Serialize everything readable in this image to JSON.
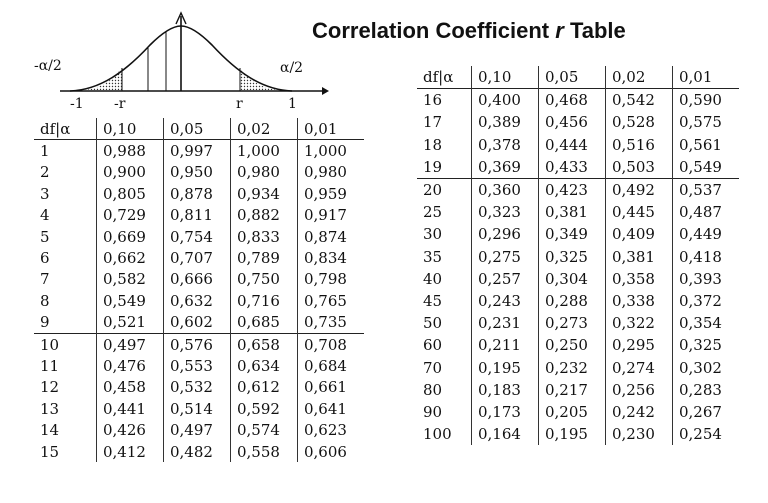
{
  "title": {
    "main": "Correlation Coefficient",
    "var": "r",
    "suffix": "Table"
  },
  "figure": {
    "left_tail": "-α/2",
    "right_tail": "α/2",
    "ticks": [
      "-1",
      "-r",
      "r",
      "1"
    ]
  },
  "left_table": {
    "headers": [
      "df|α",
      "0,10",
      "0,05",
      "0,02",
      "0,01"
    ],
    "rows": [
      [
        "1",
        "0,988",
        "0,997",
        "1,000",
        "1,000"
      ],
      [
        "2",
        "0,900",
        "0,950",
        "0,980",
        "0,980"
      ],
      [
        "3",
        "0,805",
        "0,878",
        "0,934",
        "0,959"
      ],
      [
        "4",
        "0,729",
        "0,811",
        "0,882",
        "0,917"
      ],
      [
        "5",
        "0,669",
        "0,754",
        "0,833",
        "0,874"
      ],
      [
        "6",
        "0,662",
        "0,707",
        "0,789",
        "0,834"
      ],
      [
        "7",
        "0,582",
        "0,666",
        "0,750",
        "0,798"
      ],
      [
        "8",
        "0,549",
        "0,632",
        "0,716",
        "0,765"
      ],
      [
        "9",
        "0,521",
        "0,602",
        "0,685",
        "0,735"
      ],
      [
        "10",
        "0,497",
        "0,576",
        "0,658",
        "0,708"
      ],
      [
        "11",
        "0,476",
        "0,553",
        "0,634",
        "0,684"
      ],
      [
        "12",
        "0,458",
        "0,532",
        "0,612",
        "0,661"
      ],
      [
        "13",
        "0,441",
        "0,514",
        "0,592",
        "0,641"
      ],
      [
        "14",
        "0,426",
        "0,497",
        "0,574",
        "0,623"
      ],
      [
        "15",
        "0,412",
        "0,482",
        "0,558",
        "0,606"
      ]
    ]
  },
  "right_table": {
    "headers": [
      "df|α",
      "0,10",
      "0,05",
      "0,02",
      "0,01"
    ],
    "rows": [
      [
        "16",
        "0,400",
        "0,468",
        "0,542",
        "0,590"
      ],
      [
        "17",
        "0,389",
        "0,456",
        "0,528",
        "0,575"
      ],
      [
        "18",
        "0,378",
        "0,444",
        "0,516",
        "0,561"
      ],
      [
        "19",
        "0,369",
        "0,433",
        "0,503",
        "0,549"
      ],
      [
        "20",
        "0,360",
        "0,423",
        "0,492",
        "0,537"
      ],
      [
        "25",
        "0,323",
        "0,381",
        "0,445",
        "0,487"
      ],
      [
        "30",
        "0,296",
        "0,349",
        "0,409",
        "0,449"
      ],
      [
        "35",
        "0,275",
        "0,325",
        "0,381",
        "0,418"
      ],
      [
        "40",
        "0,257",
        "0,304",
        "0,358",
        "0,393"
      ],
      [
        "45",
        "0,243",
        "0,288",
        "0,338",
        "0,372"
      ],
      [
        "50",
        "0,231",
        "0,273",
        "0,322",
        "0,354"
      ],
      [
        "60",
        "0,211",
        "0,250",
        "0,295",
        "0,325"
      ],
      [
        "70",
        "0,195",
        "0,232",
        "0,274",
        "0,302"
      ],
      [
        "80",
        "0,183",
        "0,217",
        "0,256",
        "0,283"
      ],
      [
        "90",
        "0,173",
        "0,205",
        "0,242",
        "0,267"
      ],
      [
        "100",
        "0,164",
        "0,195",
        "0,230",
        "0,254"
      ]
    ]
  }
}
